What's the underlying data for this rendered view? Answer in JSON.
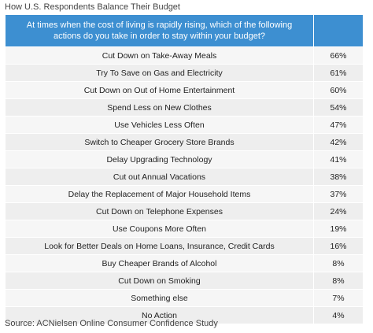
{
  "title": "How U.S. Respondents Balance Their Budget",
  "table": {
    "header": {
      "question": "At times when the cost of living is rapidly rising, which of the following actions do you take in order to stay within your budget?",
      "value": ""
    },
    "rows": [
      {
        "action": "Cut Down on Take-Away Meals",
        "percent": "66%"
      },
      {
        "action": "Try To Save on Gas and Electricity",
        "percent": "61%"
      },
      {
        "action": "Cut Down on Out of Home Entertainment",
        "percent": "60%"
      },
      {
        "action": "Spend Less on New Clothes",
        "percent": "54%"
      },
      {
        "action": "Use Vehicles Less Often",
        "percent": "47%"
      },
      {
        "action": "Switch to Cheaper Grocery Store Brands",
        "percent": "42%"
      },
      {
        "action": "Delay Upgrading Technology",
        "percent": "41%"
      },
      {
        "action": "Cut out Annual Vacations",
        "percent": "38%"
      },
      {
        "action": "Delay the Replacement of Major Household Items",
        "percent": "37%"
      },
      {
        "action": "Cut Down on Telephone Expenses",
        "percent": "24%"
      },
      {
        "action": "Use Coupons More Often",
        "percent": "19%"
      },
      {
        "action": "Look for Better Deals on Home Loans, Insurance, Credit Cards",
        "percent": "16%"
      },
      {
        "action": "Buy Cheaper Brands of Alcohol",
        "percent": "8%"
      },
      {
        "action": "Cut Down on Smoking",
        "percent": "8%"
      },
      {
        "action": "Something else",
        "percent": "7%"
      },
      {
        "action": "No Action",
        "percent": "4%"
      }
    ]
  },
  "source": "Source: ACNielsen Online Consumer Confidence Study",
  "colors": {
    "header_bg": "#3d8fd1",
    "row_bg": "#eeeeee"
  }
}
